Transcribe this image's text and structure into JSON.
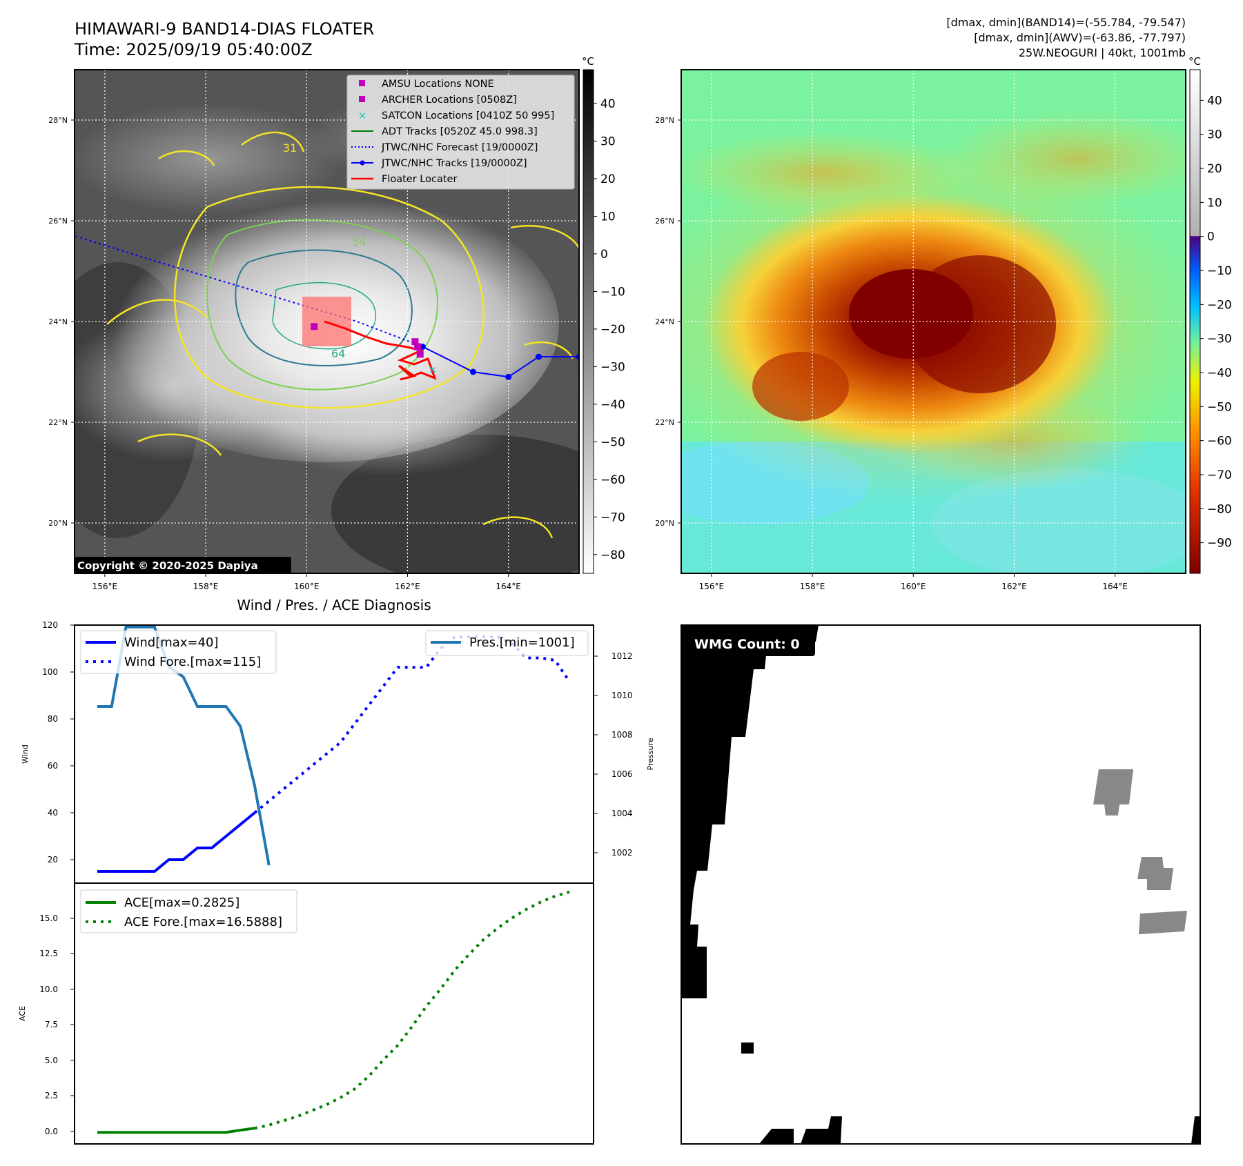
{
  "header": {
    "title_line1": "HIMAWARI-9 BAND14-DIAS FLOATER",
    "title_line2": "Time: 2025/09/19 05:40:00Z",
    "info_line1": "[dmax, dmin](BAND14)=(-55.784, -79.547)",
    "info_line2": "[dmax, dmin](AWV)=(-63.86, -77.797)",
    "info_line3": "25W.NEOGURI | 40kt, 1001mb"
  },
  "colors": {
    "wind": "#0000ff",
    "pressure": "#1f77b4",
    "ace": "#008000",
    "contour_31": "#f5e425",
    "contour_54": "#7ad151",
    "contour_64": "#22a884",
    "contour_teal": "#2a788e",
    "floater": "#ff0000",
    "archer": "#bf00bf",
    "satcon": "#00bfbf"
  },
  "ir_panel": {
    "copyright": "Copyright © 2020-2025 Dapiya",
    "lon_labels": [
      "156°E",
      "158°E",
      "160°E",
      "162°E",
      "164°E"
    ],
    "lat_labels": [
      "28°N",
      "26°N",
      "24°N",
      "22°N",
      "20°N"
    ],
    "lon_values": [
      156,
      158,
      160,
      162,
      164
    ],
    "lat_values": [
      28,
      26,
      24,
      22,
      20
    ],
    "lon_range": [
      155.4,
      165.4
    ],
    "lat_range": [
      19.0,
      29.0
    ],
    "colorbar_unit": "°C",
    "colorbar_ticks": [
      "40",
      "30",
      "20",
      "10",
      "0",
      "−10",
      "−20",
      "−30",
      "−40",
      "−50",
      "−60",
      "−70",
      "−80"
    ],
    "colorbar_values": [
      40,
      30,
      20,
      10,
      0,
      -10,
      -20,
      -30,
      -40,
      -50,
      -60,
      -70,
      -80
    ],
    "colorbar_range": [
      -85,
      49
    ],
    "contour_labels": [
      "31",
      "54",
      "64"
    ],
    "legend": [
      "AMSU Locations NONE",
      "ARCHER Locations [0508Z]",
      "SATCON Locations [0410Z 50 995]",
      "ADT Tracks [0520Z 45.0 998.3]",
      "JTWC/NHC Forecast [19/0000Z]",
      "JTWC/NHC Tracks [19/0000Z]",
      "Floater Locater"
    ],
    "jtwc_track": [
      [
        165.4,
        23.3
      ],
      [
        164.6,
        23.3
      ],
      [
        164.0,
        22.9
      ],
      [
        163.3,
        23.0
      ],
      [
        162.3,
        23.5
      ]
    ],
    "jtwc_forecast": [
      [
        162.3,
        23.5
      ],
      [
        161.0,
        24.0
      ],
      [
        159.0,
        24.6
      ],
      [
        157.0,
        25.2
      ],
      [
        155.4,
        25.7
      ]
    ],
    "archer_points": [
      [
        162.15,
        23.6
      ],
      [
        162.2,
        23.5
      ],
      [
        162.25,
        23.35
      ],
      [
        160.15,
        23.9
      ]
    ],
    "satcon_point": [
      162.5,
      23.05
    ]
  },
  "awv_panel": {
    "lon_labels": [
      "156°E",
      "158°E",
      "160°E",
      "162°E",
      "164°E"
    ],
    "lat_labels": [
      "28°N",
      "26°N",
      "24°N",
      "22°N",
      "20°N"
    ],
    "colorbar_unit": "°C",
    "colorbar_ticks": [
      "40",
      "30",
      "20",
      "10",
      "0",
      "−10",
      "−20",
      "−30",
      "−40",
      "−50",
      "−60",
      "−70",
      "−80",
      "−90"
    ],
    "colorbar_values": [
      40,
      30,
      20,
      10,
      0,
      -10,
      -20,
      -30,
      -40,
      -50,
      -60,
      -70,
      -80,
      -90
    ],
    "colorbar_range": [
      -99,
      49
    ]
  },
  "diag": {
    "title": "Wind / Pres. / ACE Diagnosis",
    "wind_ylabel": "Wind",
    "pressure_ylabel": "Pressure",
    "ace_ylabel": "ACE",
    "wind_ticks": [
      "20",
      "40",
      "60",
      "80",
      "100",
      "120"
    ],
    "pressure_ticks": [
      "1002",
      "1004",
      "1006",
      "1008",
      "1010",
      "1012"
    ],
    "ace_ticks": [
      "0.0",
      "2.5",
      "5.0",
      "7.5",
      "10.0",
      "12.5",
      "15.0"
    ],
    "legend_wind": "Wind[max=40]",
    "legend_wind_fore": "Wind Fore.[max=115]",
    "legend_pres": "Pres.[min=1001]",
    "legend_ace": "ACE[max=0.2825]",
    "legend_ace_fore": "ACE Fore.[max=16.5888]"
  },
  "chart_data": [
    {
      "type": "line",
      "title": "Wind / Pres. / ACE Diagnosis",
      "ylabel": "Wind",
      "ylim": [
        10,
        120
      ],
      "x": [
        0,
        1,
        2,
        3,
        4,
        5,
        6,
        7,
        8,
        9,
        10,
        11
      ],
      "series": [
        {
          "name": "Wind[max=40]",
          "values": [
            15,
            15,
            15,
            15,
            15,
            20,
            20,
            25,
            25,
            30,
            35,
            40
          ]
        }
      ]
    },
    {
      "type": "line",
      "ylabel": "Wind",
      "ylim": [
        10,
        120
      ],
      "x": [
        11,
        12,
        13,
        14,
        15,
        16,
        17,
        18,
        19,
        20,
        21,
        22,
        23,
        24,
        25,
        26,
        27,
        28,
        29,
        30,
        31,
        32,
        33
      ],
      "series": [
        {
          "name": "Wind Fore.[max=115]",
          "values": [
            40,
            45,
            50,
            55,
            60,
            65,
            70,
            78,
            86,
            94,
            102,
            102,
            102,
            110,
            115,
            115,
            115,
            115,
            112,
            106,
            106,
            105,
            96
          ]
        }
      ]
    },
    {
      "type": "line",
      "ylabel": "Pressure",
      "ylim": [
        1000.1,
        1013.1
      ],
      "x": [
        0,
        1,
        2,
        3,
        4,
        5,
        6,
        7,
        8,
        9,
        10,
        11,
        12
      ],
      "series": [
        {
          "name": "Pres.[min=1001]",
          "values": [
            1009,
            1009,
            1013,
            1013,
            1013,
            1011,
            1010.5,
            1009,
            1009,
            1009,
            1008,
            1005,
            1001
          ]
        }
      ]
    },
    {
      "type": "line",
      "ylabel": "ACE",
      "ylim": [
        -0.8,
        17.2
      ],
      "x": [
        0,
        1,
        2,
        3,
        4,
        5,
        6,
        7,
        8,
        9,
        10,
        11
      ],
      "series": [
        {
          "name": "ACE[max=0.2825]",
          "values": [
            0.0,
            0.0,
            0.0,
            0.0,
            0.0,
            0.0,
            0.0,
            0.0,
            0.0,
            0.0,
            0.15,
            0.2825
          ]
        }
      ]
    },
    {
      "type": "line",
      "ylabel": "ACE",
      "ylim": [
        -0.8,
        17.2
      ],
      "x": [
        11,
        12,
        13,
        14,
        15,
        16,
        17,
        18,
        19,
        20,
        21,
        22,
        23,
        24,
        25,
        26,
        27,
        28,
        29,
        30,
        31,
        32,
        33
      ],
      "series": [
        {
          "name": "ACE Fore.[max=16.5888]",
          "values": [
            0.2825,
            0.5,
            0.8,
            1.1,
            1.5,
            1.9,
            2.4,
            3.0,
            3.9,
            5.0,
            6.0,
            7.3,
            8.7,
            9.9,
            11.2,
            12.3,
            13.3,
            14.1,
            14.8,
            15.4,
            15.9,
            16.3,
            16.5888
          ]
        }
      ]
    },
    {
      "type": "heatmap",
      "title": "WMG Count: 0"
    }
  ]
}
